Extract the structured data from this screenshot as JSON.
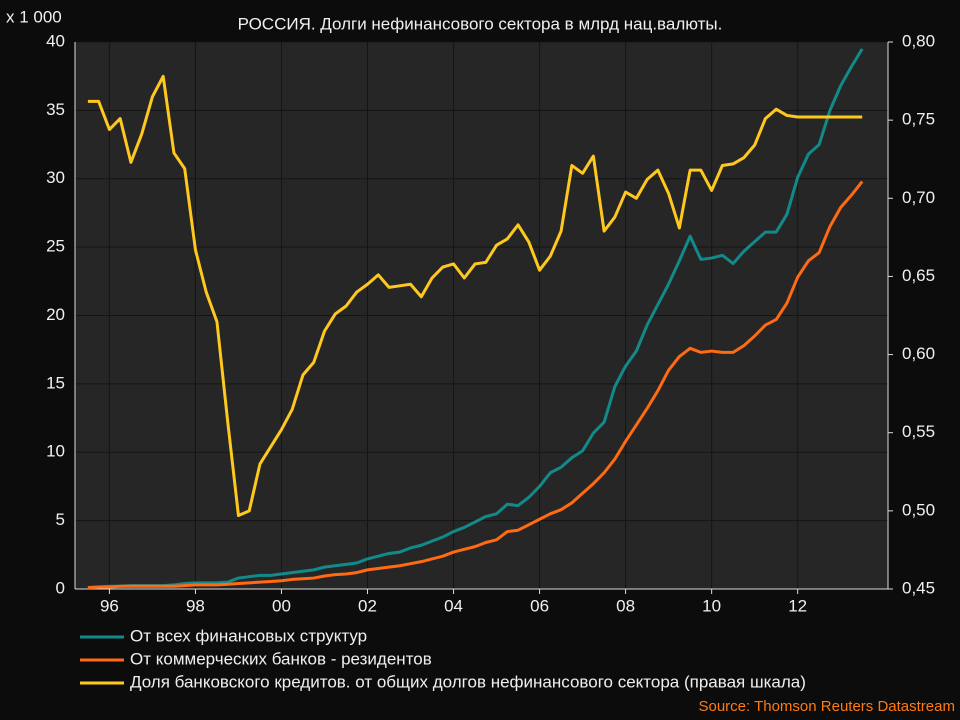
{
  "chart_data": {
    "type": "line",
    "title": "РОССИЯ. Долги нефинансового сектора в млрд нац.валюты.",
    "y_label": "x 1 000",
    "source": "Source: Thomson Reuters Datastream",
    "grid": true,
    "x": [
      1995.5,
      1995.75,
      1996,
      1996.25,
      1996.5,
      1996.75,
      1997,
      1997.25,
      1997.5,
      1997.75,
      1998,
      1998.25,
      1998.5,
      1998.75,
      1999,
      1999.25,
      1999.5,
      1999.75,
      2000,
      2000.25,
      2000.5,
      2000.75,
      2001,
      2001.25,
      2001.5,
      2001.75,
      2002,
      2002.25,
      2002.5,
      2002.75,
      2003,
      2003.25,
      2003.5,
      2003.75,
      2004,
      2004.25,
      2004.5,
      2004.75,
      2005,
      2005.25,
      2005.5,
      2005.75,
      2006,
      2006.25,
      2006.5,
      2006.75,
      2007,
      2007.25,
      2007.5,
      2007.75,
      2008,
      2008.25,
      2008.5,
      2008.75,
      2009,
      2009.25,
      2009.5,
      2009.75,
      2010,
      2010.25,
      2010.5,
      2010.75,
      2011,
      2011.25,
      2011.5,
      2011.75,
      2012,
      2012.25,
      2012.5,
      2012.75,
      2013,
      2013.25,
      2013.5
    ],
    "xlim": [
      1995.2,
      2014.1
    ],
    "xticks": [
      {
        "value": 1996,
        "label": "96"
      },
      {
        "value": 1998,
        "label": "98"
      },
      {
        "value": 2000,
        "label": "00"
      },
      {
        "value": 2002,
        "label": "02"
      },
      {
        "value": 2004,
        "label": "04"
      },
      {
        "value": 2006,
        "label": "06"
      },
      {
        "value": 2008,
        "label": "08"
      },
      {
        "value": 2010,
        "label": "10"
      },
      {
        "value": 2012,
        "label": "12"
      }
    ],
    "ylim": [
      0,
      40
    ],
    "yticks": [
      0,
      5,
      10,
      15,
      20,
      25,
      30,
      35,
      40
    ],
    "y2lim": [
      0.45,
      0.8
    ],
    "y2ticks": [
      {
        "value": 0.45,
        "label": "0,45"
      },
      {
        "value": 0.5,
        "label": "0,50"
      },
      {
        "value": 0.55,
        "label": "0,55"
      },
      {
        "value": 0.6,
        "label": "0,60"
      },
      {
        "value": 0.65,
        "label": "0,65"
      },
      {
        "value": 0.7,
        "label": "0,70"
      },
      {
        "value": 0.75,
        "label": "0,75"
      },
      {
        "value": 0.8,
        "label": "0,80"
      }
    ],
    "series": [
      {
        "name": "От всех финансовых структур",
        "color": "#138a8a",
        "values": [
          0.1,
          0.15,
          0.2,
          0.2,
          0.25,
          0.25,
          0.25,
          0.25,
          0.3,
          0.4,
          0.45,
          0.45,
          0.45,
          0.5,
          0.8,
          0.9,
          1.0,
          1.0,
          1.1,
          1.2,
          1.3,
          1.4,
          1.6,
          1.7,
          1.8,
          1.9,
          2.2,
          2.4,
          2.6,
          2.7,
          3.0,
          3.2,
          3.5,
          3.8,
          4.2,
          4.5,
          4.9,
          5.3,
          5.5,
          6.2,
          6.1,
          6.7,
          7.5,
          8.5,
          8.9,
          9.6,
          10.1,
          11.4,
          12.2,
          14.8,
          16.3,
          17.4,
          19.3,
          20.8,
          22.3,
          24.0,
          25.8,
          24.1,
          24.2,
          24.4,
          23.8,
          24.7,
          25.4,
          26.1,
          26.1,
          27.4,
          30.1,
          31.8,
          32.5,
          35.0,
          36.8,
          38.2,
          39.5
        ]
      },
      {
        "name": "От коммерческих банков - резидентов",
        "color": "#ff6a13",
        "values": [
          0.1,
          0.15,
          0.15,
          0.2,
          0.2,
          0.2,
          0.2,
          0.2,
          0.2,
          0.25,
          0.3,
          0.3,
          0.3,
          0.35,
          0.4,
          0.45,
          0.5,
          0.55,
          0.6,
          0.7,
          0.75,
          0.8,
          0.95,
          1.05,
          1.1,
          1.2,
          1.4,
          1.5,
          1.6,
          1.7,
          1.85,
          2.0,
          2.2,
          2.4,
          2.7,
          2.9,
          3.1,
          3.4,
          3.6,
          4.2,
          4.3,
          4.7,
          5.1,
          5.5,
          5.8,
          6.3,
          7.0,
          7.7,
          8.5,
          9.5,
          10.8,
          12.0,
          13.2,
          14.5,
          16.0,
          17.0,
          17.6,
          17.3,
          17.4,
          17.3,
          17.3,
          17.8,
          18.5,
          19.3,
          19.7,
          20.9,
          22.8,
          24.0,
          24.6,
          26.5,
          27.9,
          28.8,
          29.8
        ]
      },
      {
        "name": "Доля банковского кредитов. от общих долгов нефинансового сектора (правая шкала)",
        "color": "#ffc81e",
        "axis": "y2",
        "values": [
          0.762,
          0.762,
          0.744,
          0.751,
          0.723,
          0.741,
          0.765,
          0.778,
          0.729,
          0.719,
          0.667,
          0.64,
          0.621,
          0.557,
          0.497,
          0.5,
          0.53,
          0.541,
          0.552,
          0.565,
          0.587,
          0.595,
          0.615,
          0.626,
          0.631,
          0.64,
          0.645,
          0.651,
          0.643,
          0.644,
          0.645,
          0.637,
          0.649,
          0.656,
          0.658,
          0.649,
          0.658,
          0.659,
          0.67,
          0.674,
          0.683,
          0.672,
          0.654,
          0.663,
          0.679,
          0.721,
          0.716,
          0.727,
          0.679,
          0.688,
          0.704,
          0.7,
          0.712,
          0.718,
          0.703,
          0.681,
          0.718,
          0.718,
          0.705,
          0.721,
          0.722,
          0.726,
          0.734,
          0.751,
          0.757,
          0.753,
          0.752,
          0.752,
          0.752,
          0.752,
          0.752,
          0.752,
          0.752
        ]
      }
    ]
  }
}
